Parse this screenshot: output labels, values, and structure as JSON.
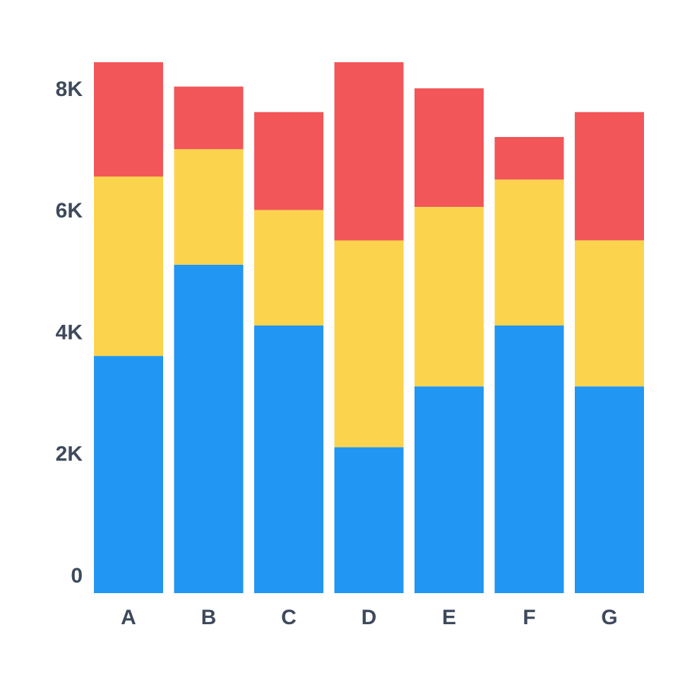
{
  "chart_data": {
    "type": "bar",
    "stacked": true,
    "title": "",
    "xlabel": "",
    "ylabel": "",
    "categories": [
      "A",
      "B",
      "C",
      "D",
      "E",
      "F",
      "G"
    ],
    "y_ticks": [
      "0",
      "2K",
      "4K",
      "6K",
      "8K"
    ],
    "y_tick_values": [
      0,
      2000,
      4000,
      6000,
      8000
    ],
    "ylim": [
      0,
      8650
    ],
    "grid": false,
    "legend": "none",
    "series": [
      {
        "color": "#2196f3",
        "values": [
          3900,
          5400,
          4400,
          2400,
          3400,
          4400,
          3400
        ]
      },
      {
        "color": "#fcd34d",
        "values": [
          2950,
          1900,
          1900,
          3400,
          2950,
          2400,
          2400
        ]
      },
      {
        "color": "#f25659",
        "values": [
          1880,
          1030,
          1610,
          2930,
          1950,
          700,
          2110
        ]
      }
    ]
  }
}
